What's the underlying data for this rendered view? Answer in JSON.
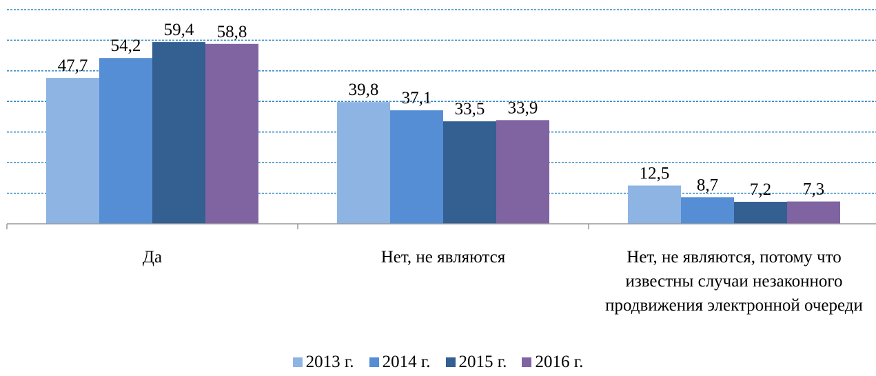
{
  "chart_data": {
    "type": "bar",
    "categories": [
      "Да",
      "Нет, не являются",
      "Нет, не являются, потому что известны случаи незаконного продвижения электронной очереди"
    ],
    "series": [
      {
        "name": "2013 г.",
        "color": "#8eb4e3",
        "values": [
          47.7,
          39.8,
          12.5
        ],
        "value_labels": [
          "47,7",
          "39,8",
          "12,5"
        ]
      },
      {
        "name": "2014 г.",
        "color": "#558ed5",
        "values": [
          54.2,
          37.1,
          8.7
        ],
        "value_labels": [
          "54,2",
          "37,1",
          "8,7"
        ]
      },
      {
        "name": "2015 г.",
        "color": "#335f91",
        "values": [
          59.4,
          33.5,
          7.2
        ],
        "value_labels": [
          "59,4",
          "33,5",
          "7,2"
        ]
      },
      {
        "name": "2016 г.",
        "color": "#8064a2",
        "values": [
          58.8,
          33.9,
          7.3
        ],
        "value_labels": [
          "58,8",
          "33,9",
          "7,3"
        ]
      }
    ],
    "ylim": [
      0,
      70
    ],
    "yticks": [
      0,
      10,
      20,
      30,
      40,
      50,
      60,
      70
    ],
    "grid": true,
    "legend": "bottom"
  }
}
